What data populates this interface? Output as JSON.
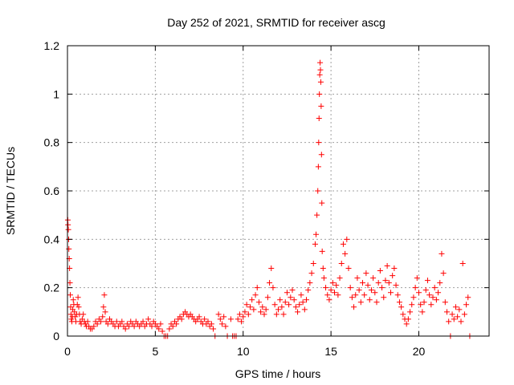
{
  "chart_data": {
    "type": "scatter",
    "title": "Day 252 of 2021, SRMTID for receiver ascg",
    "xlabel": "GPS time / hours",
    "ylabel": "SRMTID / TECUs",
    "xlim": [
      0,
      24
    ],
    "ylim": [
      0,
      1.2
    ],
    "xticks": [
      0,
      5,
      10,
      15,
      20
    ],
    "xtick_labels": [
      "0",
      "5",
      "10",
      "15",
      "20"
    ],
    "yticks": [
      0,
      0.2,
      0.4,
      0.6,
      0.8,
      1.0,
      1.2
    ],
    "ytick_labels": [
      "0",
      "0.2",
      "0.4",
      "0.6",
      "0.8",
      "1",
      "1.2"
    ],
    "grid": true,
    "marker": "+",
    "color": "#ff0000",
    "series": [
      {
        "name": "ascg",
        "points": [
          [
            0.02,
            0.48
          ],
          [
            0.03,
            0.46
          ],
          [
            0.05,
            0.44
          ],
          [
            0.07,
            0.4
          ],
          [
            0.08,
            0.36
          ],
          [
            0.1,
            0.32
          ],
          [
            0.12,
            0.28
          ],
          [
            0.14,
            0.22
          ],
          [
            0.16,
            0.17
          ],
          [
            0.18,
            0.12
          ],
          [
            0.2,
            0.09
          ],
          [
            0.22,
            0.07
          ],
          [
            0.25,
            0.06
          ],
          [
            0.28,
            0.08
          ],
          [
            0.3,
            0.11
          ],
          [
            0.33,
            0.15
          ],
          [
            0.36,
            0.13
          ],
          [
            0.4,
            0.1
          ],
          [
            0.44,
            0.08
          ],
          [
            0.48,
            0.06
          ],
          [
            0.52,
            0.09
          ],
          [
            0.56,
            0.13
          ],
          [
            0.6,
            0.16
          ],
          [
            0.64,
            0.12
          ],
          [
            0.68,
            0.09
          ],
          [
            0.72,
            0.06
          ],
          [
            0.78,
            0.05
          ],
          [
            0.84,
            0.07
          ],
          [
            0.9,
            0.09
          ],
          [
            0.96,
            0.06
          ],
          [
            1.02,
            0.05
          ],
          [
            1.08,
            0.04
          ],
          [
            1.15,
            0.06
          ],
          [
            1.22,
            0.04
          ],
          [
            1.3,
            0.03
          ],
          [
            1.4,
            0.03
          ],
          [
            1.5,
            0.04
          ],
          [
            1.6,
            0.06
          ],
          [
            1.7,
            0.05
          ],
          [
            1.8,
            0.07
          ],
          [
            1.9,
            0.06
          ],
          [
            2.0,
            0.08
          ],
          [
            2.05,
            0.12
          ],
          [
            2.1,
            0.17
          ],
          [
            2.15,
            0.1
          ],
          [
            2.2,
            0.06
          ],
          [
            2.3,
            0.05
          ],
          [
            2.4,
            0.07
          ],
          [
            2.5,
            0.06
          ],
          [
            2.6,
            0.05
          ],
          [
            2.7,
            0.04
          ],
          [
            2.8,
            0.06
          ],
          [
            2.9,
            0.04
          ],
          [
            3.0,
            0.05
          ],
          [
            3.1,
            0.06
          ],
          [
            3.2,
            0.04
          ],
          [
            3.3,
            0.03
          ],
          [
            3.4,
            0.05
          ],
          [
            3.5,
            0.04
          ],
          [
            3.6,
            0.06
          ],
          [
            3.7,
            0.05
          ],
          [
            3.8,
            0.04
          ],
          [
            3.9,
            0.06
          ],
          [
            4.0,
            0.05
          ],
          [
            4.1,
            0.04
          ],
          [
            4.2,
            0.05
          ],
          [
            4.3,
            0.06
          ],
          [
            4.4,
            0.04
          ],
          [
            4.5,
            0.05
          ],
          [
            4.6,
            0.07
          ],
          [
            4.7,
            0.05
          ],
          [
            4.8,
            0.04
          ],
          [
            4.9,
            0.06
          ],
          [
            5.0,
            0.05
          ],
          [
            5.1,
            0.04
          ],
          [
            5.2,
            0.03
          ],
          [
            5.3,
            0.05
          ],
          [
            5.4,
            0.02
          ],
          [
            5.5,
            0.0
          ],
          [
            5.6,
            0.0
          ],
          [
            5.7,
            0.0
          ],
          [
            5.8,
            0.03
          ],
          [
            5.9,
            0.05
          ],
          [
            6.0,
            0.04
          ],
          [
            6.1,
            0.06
          ],
          [
            6.2,
            0.05
          ],
          [
            6.3,
            0.07
          ],
          [
            6.4,
            0.08
          ],
          [
            6.5,
            0.07
          ],
          [
            6.6,
            0.09
          ],
          [
            6.7,
            0.1
          ],
          [
            6.8,
            0.09
          ],
          [
            6.9,
            0.08
          ],
          [
            7.0,
            0.09
          ],
          [
            7.1,
            0.08
          ],
          [
            7.2,
            0.07
          ],
          [
            7.3,
            0.06
          ],
          [
            7.4,
            0.07
          ],
          [
            7.5,
            0.08
          ],
          [
            7.6,
            0.06
          ],
          [
            7.7,
            0.05
          ],
          [
            7.8,
            0.07
          ],
          [
            7.9,
            0.05
          ],
          [
            8.0,
            0.06
          ],
          [
            8.1,
            0.04
          ],
          [
            8.2,
            0.05
          ],
          [
            8.3,
            0.03
          ],
          [
            8.4,
            0.0
          ],
          [
            8.6,
            0.09
          ],
          [
            8.7,
            0.07
          ],
          [
            8.8,
            0.05
          ],
          [
            8.9,
            0.08
          ],
          [
            9.0,
            0.04
          ],
          [
            9.1,
            0.0
          ],
          [
            9.3,
            0.07
          ],
          [
            9.4,
            0.0
          ],
          [
            9.5,
            0.0
          ],
          [
            9.6,
            0.0
          ],
          [
            9.7,
            0.07
          ],
          [
            9.8,
            0.09
          ],
          [
            9.9,
            0.06
          ],
          [
            10.0,
            0.08
          ],
          [
            10.1,
            0.1
          ],
          [
            10.2,
            0.13
          ],
          [
            10.3,
            0.09
          ],
          [
            10.4,
            0.12
          ],
          [
            10.5,
            0.15
          ],
          [
            10.6,
            0.11
          ],
          [
            10.7,
            0.17
          ],
          [
            10.8,
            0.2
          ],
          [
            10.9,
            0.14
          ],
          [
            11.0,
            0.1
          ],
          [
            11.1,
            0.12
          ],
          [
            11.2,
            0.09
          ],
          [
            11.3,
            0.11
          ],
          [
            11.4,
            0.16
          ],
          [
            11.5,
            0.22
          ],
          [
            11.6,
            0.28
          ],
          [
            11.7,
            0.2
          ],
          [
            11.8,
            0.13
          ],
          [
            11.9,
            0.09
          ],
          [
            12.0,
            0.11
          ],
          [
            12.1,
            0.15
          ],
          [
            12.2,
            0.12
          ],
          [
            12.3,
            0.09
          ],
          [
            12.4,
            0.14
          ],
          [
            12.5,
            0.18
          ],
          [
            12.6,
            0.13
          ],
          [
            12.7,
            0.16
          ],
          [
            12.8,
            0.19
          ],
          [
            12.9,
            0.15
          ],
          [
            13.0,
            0.12
          ],
          [
            13.1,
            0.1
          ],
          [
            13.2,
            0.13
          ],
          [
            13.3,
            0.17
          ],
          [
            13.4,
            0.14
          ],
          [
            13.5,
            0.11
          ],
          [
            13.6,
            0.15
          ],
          [
            13.7,
            0.19
          ],
          [
            13.8,
            0.22
          ],
          [
            13.9,
            0.26
          ],
          [
            14.0,
            0.3
          ],
          [
            14.1,
            0.38
          ],
          [
            14.15,
            0.42
          ],
          [
            14.2,
            0.5
          ],
          [
            14.25,
            0.6
          ],
          [
            14.28,
            0.7
          ],
          [
            14.3,
            0.8
          ],
          [
            14.32,
            0.9
          ],
          [
            14.34,
            1.0
          ],
          [
            14.36,
            1.08
          ],
          [
            14.38,
            1.13
          ],
          [
            14.4,
            1.1
          ],
          [
            14.42,
            1.05
          ],
          [
            14.44,
            0.95
          ],
          [
            14.46,
            0.75
          ],
          [
            14.48,
            0.55
          ],
          [
            14.5,
            0.35
          ],
          [
            14.55,
            0.28
          ],
          [
            14.6,
            0.24
          ],
          [
            14.7,
            0.2
          ],
          [
            14.8,
            0.17
          ],
          [
            14.9,
            0.15
          ],
          [
            15.0,
            0.19
          ],
          [
            15.1,
            0.22
          ],
          [
            15.2,
            0.18
          ],
          [
            15.3,
            0.21
          ],
          [
            15.4,
            0.17
          ],
          [
            15.5,
            0.24
          ],
          [
            15.6,
            0.3
          ],
          [
            15.7,
            0.38
          ],
          [
            15.8,
            0.34
          ],
          [
            15.9,
            0.4
          ],
          [
            16.0,
            0.28
          ],
          [
            16.1,
            0.2
          ],
          [
            16.2,
            0.16
          ],
          [
            16.3,
            0.12
          ],
          [
            16.4,
            0.17
          ],
          [
            16.5,
            0.24
          ],
          [
            16.6,
            0.19
          ],
          [
            16.7,
            0.14
          ],
          [
            16.8,
            0.22
          ],
          [
            16.9,
            0.17
          ],
          [
            17.0,
            0.26
          ],
          [
            17.1,
            0.21
          ],
          [
            17.2,
            0.15
          ],
          [
            17.3,
            0.19
          ],
          [
            17.4,
            0.24
          ],
          [
            17.5,
            0.18
          ],
          [
            17.6,
            0.14
          ],
          [
            17.7,
            0.22
          ],
          [
            17.8,
            0.27
          ],
          [
            17.9,
            0.2
          ],
          [
            18.0,
            0.16
          ],
          [
            18.1,
            0.23
          ],
          [
            18.2,
            0.29
          ],
          [
            18.3,
            0.22
          ],
          [
            18.4,
            0.18
          ],
          [
            18.5,
            0.25
          ],
          [
            18.6,
            0.28
          ],
          [
            18.7,
            0.21
          ],
          [
            18.8,
            0.17
          ],
          [
            18.9,
            0.14
          ],
          [
            19.0,
            0.12
          ],
          [
            19.1,
            0.09
          ],
          [
            19.2,
            0.07
          ],
          [
            19.3,
            0.05
          ],
          [
            19.4,
            0.07
          ],
          [
            19.5,
            0.1
          ],
          [
            19.6,
            0.13
          ],
          [
            19.7,
            0.16
          ],
          [
            19.8,
            0.2
          ],
          [
            19.9,
            0.24
          ],
          [
            20.0,
            0.18
          ],
          [
            20.1,
            0.13
          ],
          [
            20.2,
            0.1
          ],
          [
            20.3,
            0.14
          ],
          [
            20.4,
            0.19
          ],
          [
            20.5,
            0.23
          ],
          [
            20.6,
            0.17
          ],
          [
            20.7,
            0.13
          ],
          [
            20.8,
            0.16
          ],
          [
            20.9,
            0.2
          ],
          [
            21.0,
            0.15
          ],
          [
            21.1,
            0.18
          ],
          [
            21.2,
            0.22
          ],
          [
            21.3,
            0.34
          ],
          [
            21.4,
            0.26
          ],
          [
            21.5,
            0.14
          ],
          [
            21.6,
            0.1
          ],
          [
            21.7,
            0.06
          ],
          [
            21.8,
            0.0
          ],
          [
            21.9,
            0.09
          ],
          [
            22.0,
            0.07
          ],
          [
            22.1,
            0.12
          ],
          [
            22.2,
            0.08
          ],
          [
            22.3,
            0.11
          ],
          [
            22.4,
            0.06
          ],
          [
            22.5,
            0.3
          ],
          [
            22.6,
            0.09
          ],
          [
            22.7,
            0.13
          ],
          [
            22.8,
            0.16
          ],
          [
            22.9,
            0.0
          ]
        ]
      }
    ]
  }
}
